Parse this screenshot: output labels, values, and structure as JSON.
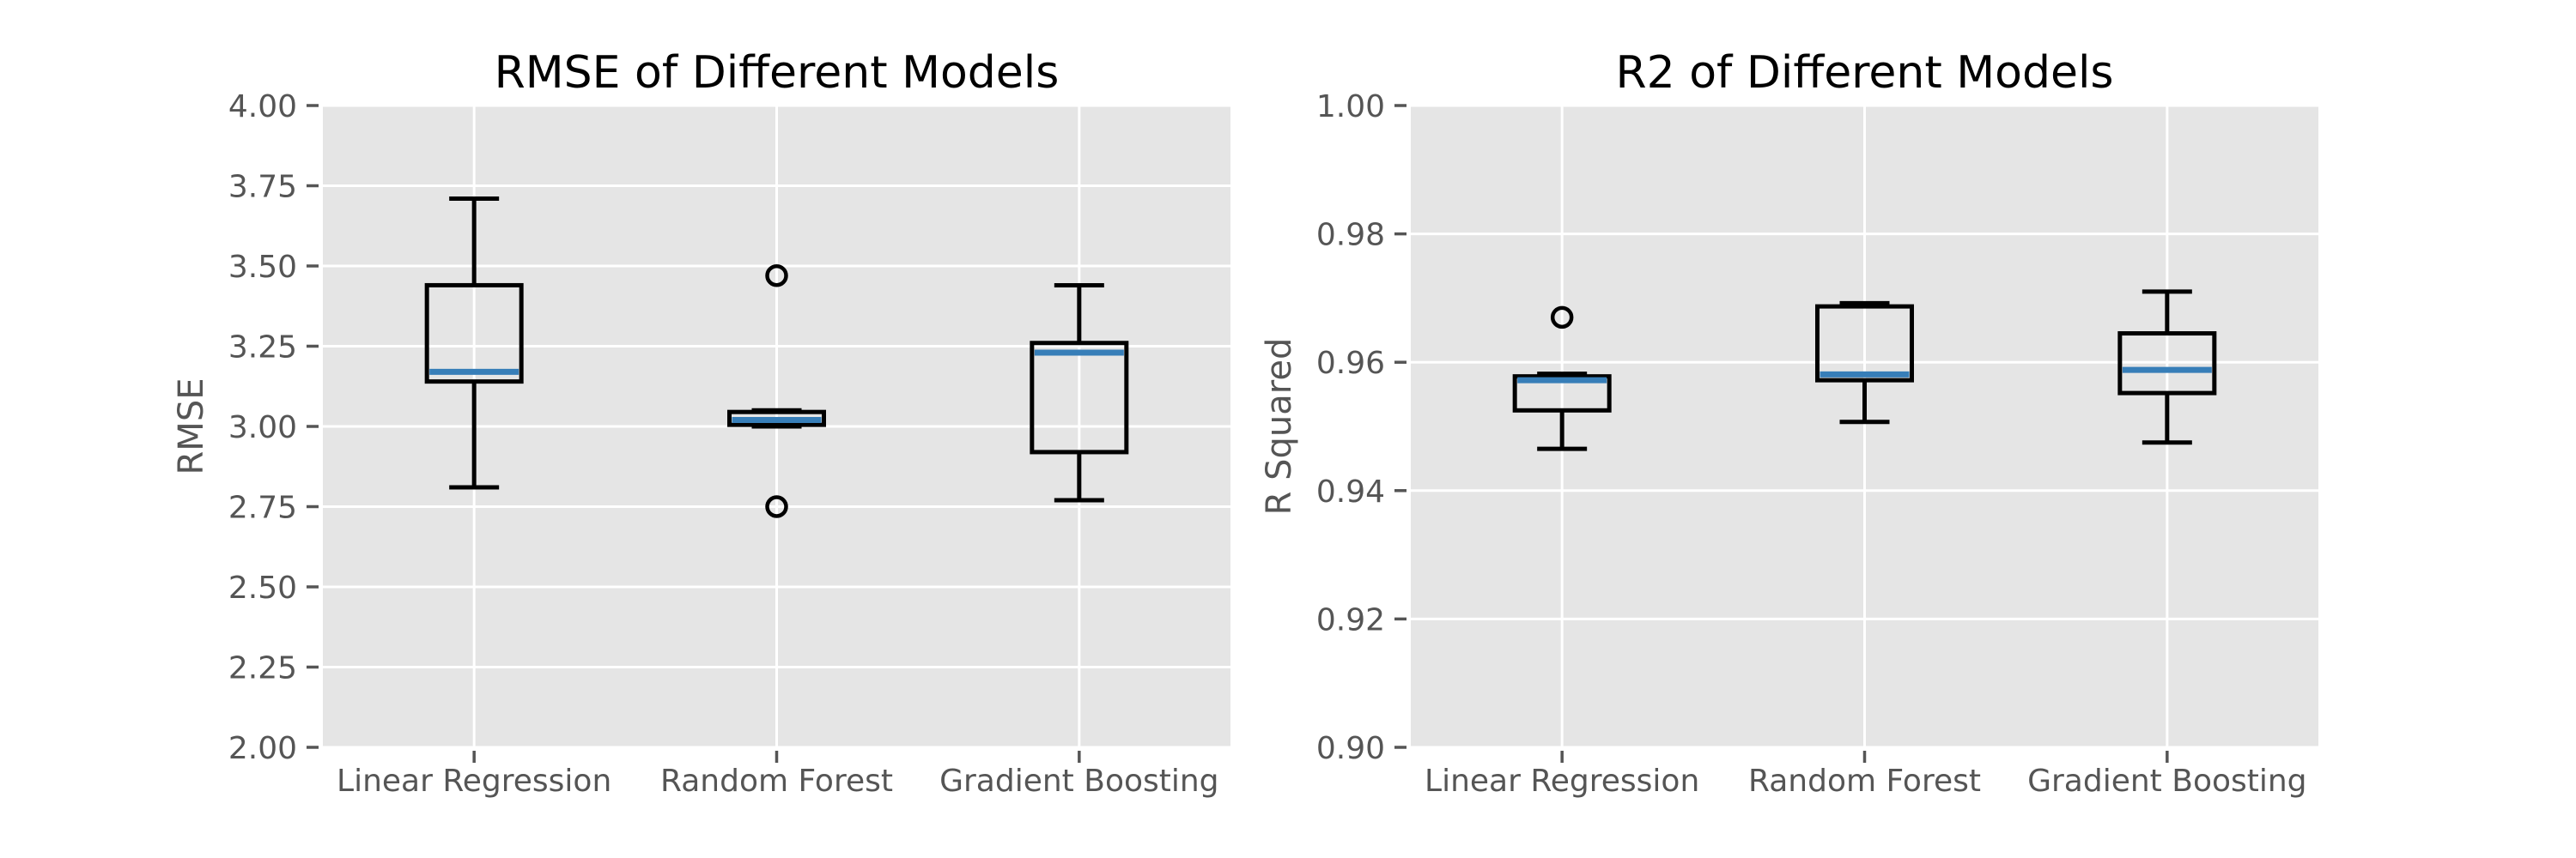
{
  "style": {
    "figure_bg": "#ffffff",
    "plot_bg": "#e5e5e5",
    "grid_color": "#ffffff",
    "tick_color": "#555555",
    "box_color": "#000000",
    "median_color": "#377eb8",
    "title_color": "#000000"
  },
  "chart_data": [
    {
      "type": "box",
      "title": "RMSE of Different Models",
      "ylabel": "RMSE",
      "xlabel": "",
      "grid": true,
      "legend": "none",
      "ylim": [
        2.0,
        4.0
      ],
      "yticks": [
        2.0,
        2.25,
        2.5,
        2.75,
        3.0,
        3.25,
        3.5,
        3.75,
        4.0
      ],
      "ytick_labels": [
        "2.00",
        "2.25",
        "2.50",
        "2.75",
        "3.00",
        "3.25",
        "3.50",
        "3.75",
        "4.00"
      ],
      "categories": [
        "Linear Regression",
        "Random Forest",
        "Gradient Boosting"
      ],
      "boxes": [
        {
          "label": "Linear Regression",
          "whislo": 2.81,
          "q1": 3.14,
          "med": 3.17,
          "q3": 3.44,
          "whishi": 3.71,
          "fliers": []
        },
        {
          "label": "Random Forest",
          "whislo": 3.0,
          "q1": 3.005,
          "med": 3.02,
          "q3": 3.045,
          "whishi": 3.05,
          "fliers": [
            3.47,
            2.75
          ]
        },
        {
          "label": "Gradient Boosting",
          "whislo": 2.77,
          "q1": 2.92,
          "med": 3.23,
          "q3": 3.26,
          "whishi": 3.44,
          "fliers": []
        }
      ]
    },
    {
      "type": "box",
      "title": "R2 of Different Models",
      "ylabel": "R Squared",
      "xlabel": "",
      "grid": true,
      "legend": "none",
      "ylim": [
        0.9,
        1.0
      ],
      "yticks": [
        0.9,
        0.92,
        0.94,
        0.96,
        0.98,
        1.0
      ],
      "ytick_labels": [
        "0.90",
        "0.92",
        "0.94",
        "0.96",
        "0.98",
        "1.00"
      ],
      "categories": [
        "Linear Regression",
        "Random Forest",
        "Gradient Boosting"
      ],
      "boxes": [
        {
          "label": "Linear Regression",
          "whislo": 0.9465,
          "q1": 0.9525,
          "med": 0.9572,
          "q3": 0.9578,
          "whishi": 0.9582,
          "fliers": [
            0.967
          ]
        },
        {
          "label": "Random Forest",
          "whislo": 0.9507,
          "q1": 0.9572,
          "med": 0.9581,
          "q3": 0.9687,
          "whishi": 0.9692,
          "fliers": []
        },
        {
          "label": "Gradient Boosting",
          "whislo": 0.9475,
          "q1": 0.9552,
          "med": 0.9588,
          "q3": 0.9645,
          "whishi": 0.971,
          "fliers": []
        }
      ]
    }
  ]
}
